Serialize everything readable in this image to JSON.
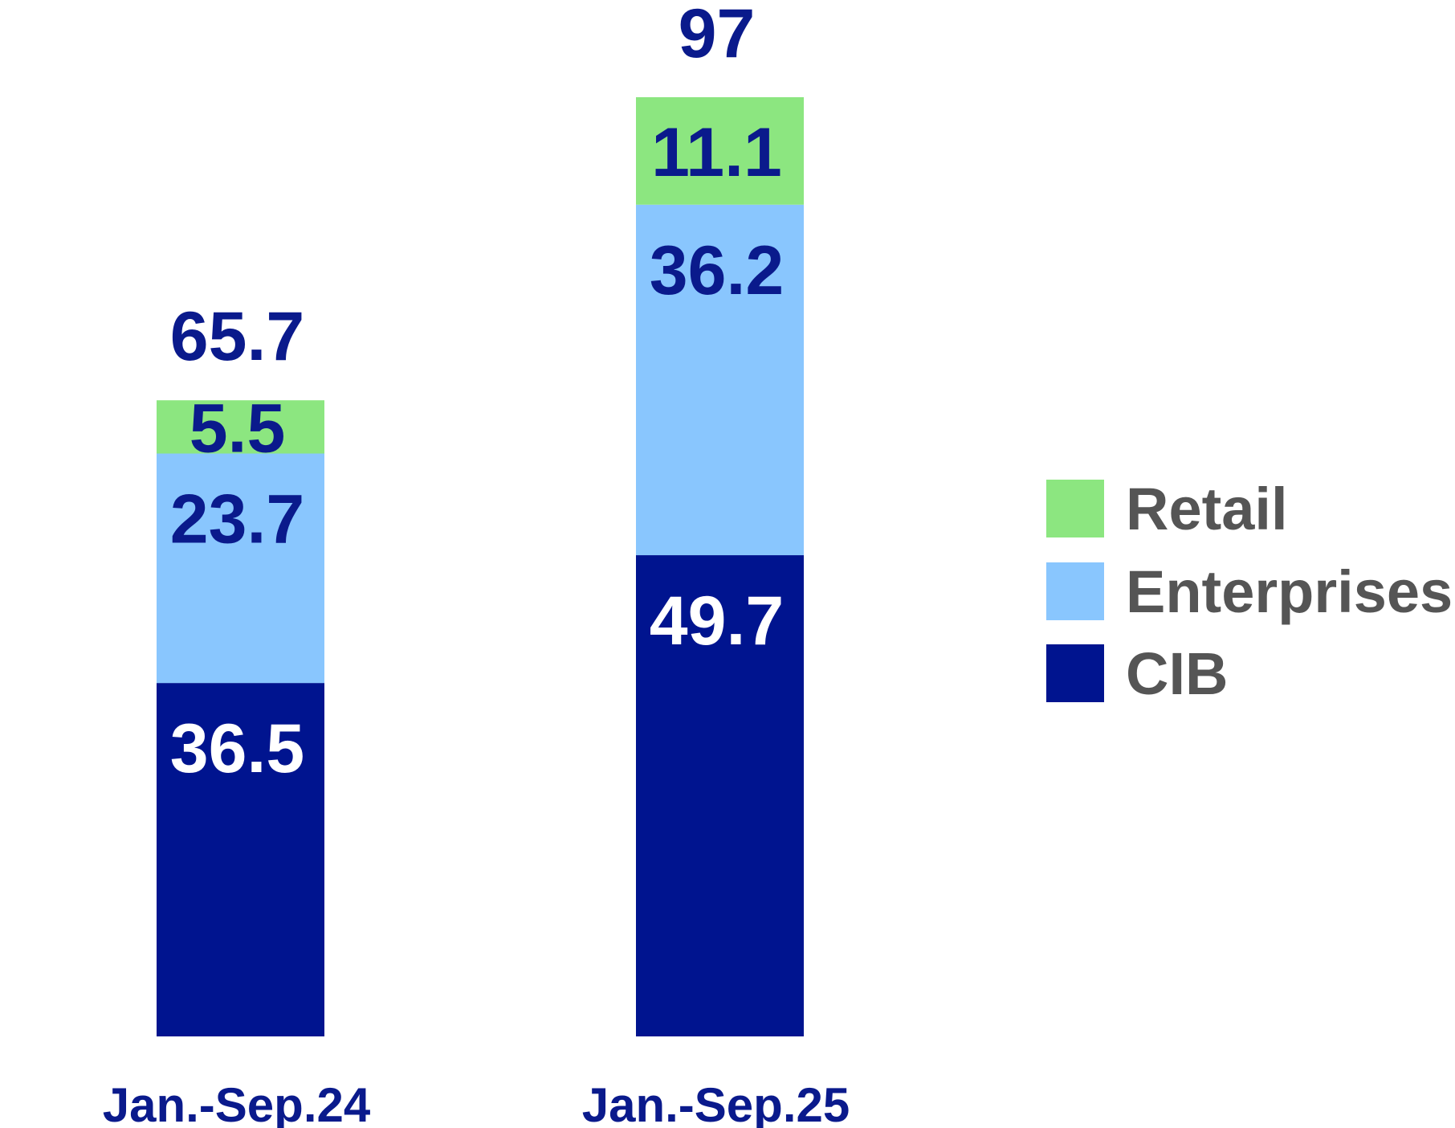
{
  "chart_data": {
    "type": "bar",
    "stacked": true,
    "categories": [
      "Jan.-Sep.24",
      "Jan.-Sep.25"
    ],
    "series": [
      {
        "name": "CIB",
        "values": [
          36.5,
          49.7
        ],
        "color": "#00148F",
        "label_color": "#FFFFFF"
      },
      {
        "name": "Enterprises",
        "values": [
          23.7,
          36.2
        ],
        "color": "#89C6FE",
        "label_color": "#0A1A8C"
      },
      {
        "name": "Retail",
        "values": [
          5.5,
          11.1
        ],
        "color": "#8CE680",
        "label_color": "#0A1A8C"
      }
    ],
    "totals": [
      "65.7",
      "97"
    ],
    "segment_labels": [
      [
        "36.5",
        "23.7",
        "5.5"
      ],
      [
        "49.7",
        "36.2",
        "11.1"
      ]
    ],
    "legend": {
      "placement": "right",
      "order": [
        "Retail",
        "Enterprises",
        "CIB"
      ]
    },
    "grid": false,
    "ylim": [
      0,
      97
    ],
    "text_color": "#0A1A8C",
    "legend_text_color": "#555555"
  }
}
